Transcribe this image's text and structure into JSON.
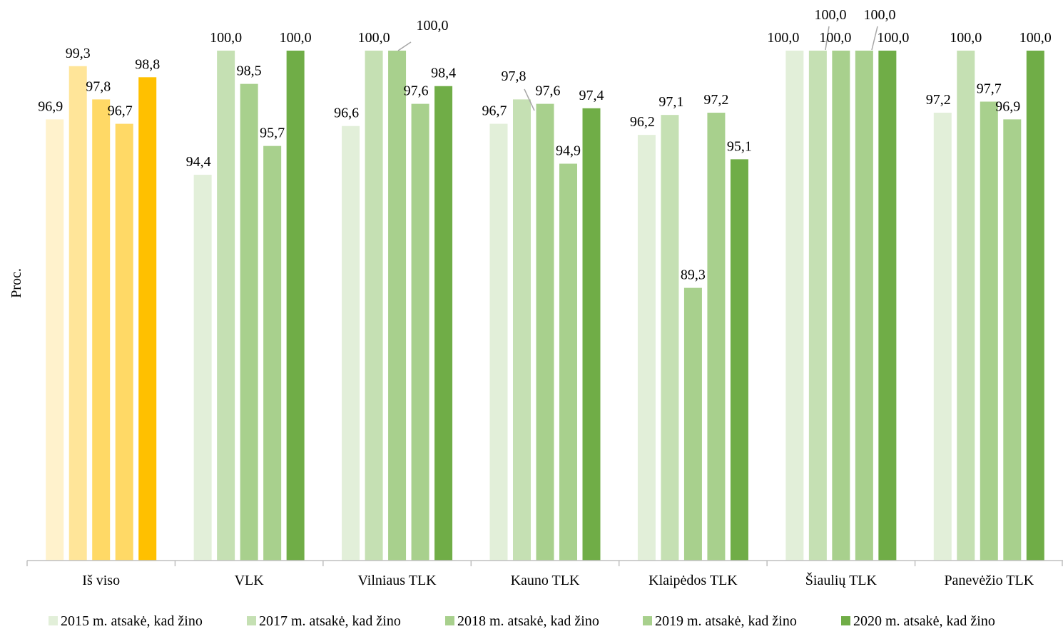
{
  "chart_data": {
    "type": "bar",
    "title": "",
    "xlabel": "",
    "ylabel": "Proc.",
    "ylim": [
      77,
      100
    ],
    "categories": [
      "Iš viso",
      "VLK",
      "Vilniaus TLK",
      "Kauno TLK",
      "Klaipėdos TLK",
      "Šiaulių TLK",
      "Panevėžio TLK"
    ],
    "series": [
      {
        "name": "2015 m. atsakė, kad žino",
        "values": [
          96.9,
          94.4,
          96.6,
          96.7,
          96.2,
          100.0,
          97.2
        ],
        "labels": [
          "96,9",
          "94,4",
          "96,6",
          "96,7",
          "96,2",
          "100,0",
          "97,2"
        ]
      },
      {
        "name": "2017 m. atsakė, kad žino",
        "values": [
          99.3,
          100.0,
          100.0,
          97.8,
          97.1,
          100.0,
          100.0
        ],
        "labels": [
          "99,3",
          "100,0",
          "100,0",
          "97,8",
          "97,1",
          "100,0",
          "100,0"
        ]
      },
      {
        "name": "2018 m. atsakė, kad žino",
        "values": [
          97.8,
          98.5,
          100.0,
          97.6,
          89.3,
          100.0,
          97.7
        ],
        "labels": [
          "97,8",
          "98,5",
          "100,0",
          "97,6",
          "89,3",
          "100,0",
          "97,7"
        ]
      },
      {
        "name": "2019 m. atsakė, kad žino",
        "values": [
          96.7,
          95.7,
          97.6,
          94.9,
          97.2,
          100.0,
          96.9
        ],
        "labels": [
          "96,7",
          "95,7",
          "97,6",
          "94,9",
          "97,2",
          "100,0",
          "96,9"
        ]
      },
      {
        "name": "2020 m. atsakė, kad žino",
        "values": [
          98.8,
          100.0,
          98.4,
          97.4,
          95.1,
          100.0,
          100.0
        ],
        "labels": [
          "98,8",
          "100,0",
          "98,4",
          "97,4",
          "95,1",
          "100,0",
          "100,0"
        ]
      }
    ],
    "colors": {
      "green": [
        "#e2efd9",
        "#c5e0b3",
        "#a8d08d",
        "#a8d08d",
        "#70ad47"
      ],
      "gold": [
        "#fff2cc",
        "#ffe599",
        "#ffd966",
        "#ffd966",
        "#ffc000"
      ],
      "axis": "#bfbfbf",
      "leader": "#a6a6a6"
    },
    "grid": false,
    "legend_position": "bottom",
    "highlighted_category": "Iš viso"
  }
}
